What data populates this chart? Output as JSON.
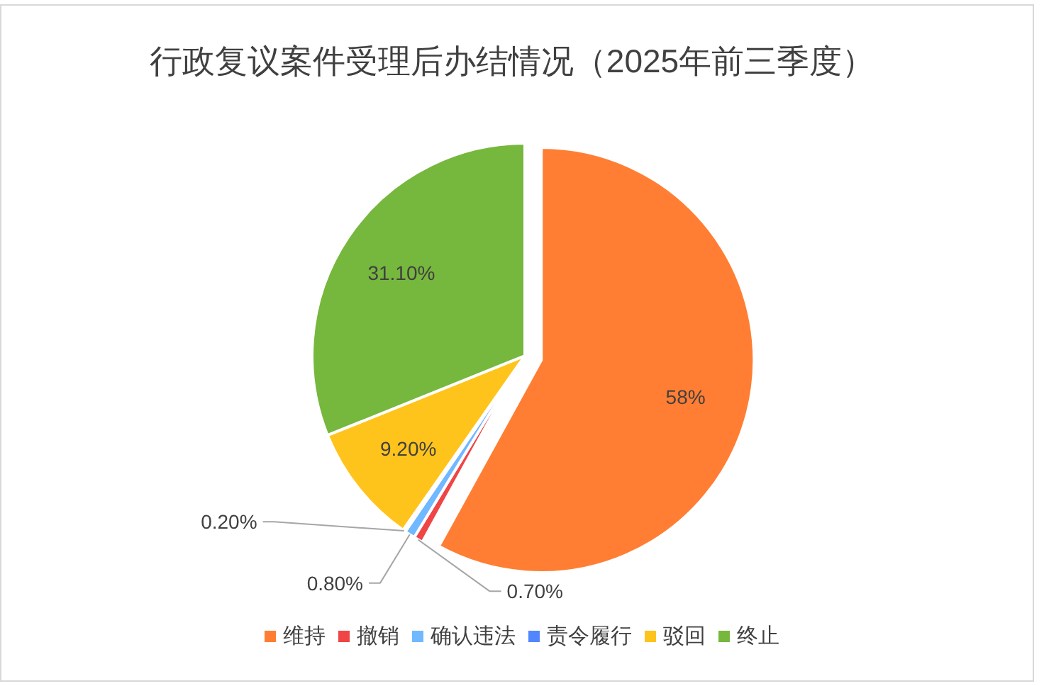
{
  "chart_data": {
    "type": "pie",
    "title": "行政复议案件受理后办结情况（2025年前三季度）",
    "categories": [
      "维持",
      "撤销",
      "确认违法",
      "责令履行",
      "驳回",
      "终止"
    ],
    "values": [
      58,
      0.7,
      0.8,
      0.2,
      9.2,
      31.1
    ],
    "colors": [
      "#FF7E33",
      "#F04545",
      "#70B8FF",
      "#5286FF",
      "#FFC41C",
      "#76B73E"
    ],
    "value_labels": [
      "58%",
      "0.70%",
      "0.80%",
      "0.20%",
      "9.20%",
      "31.10%"
    ],
    "legend": "bottom"
  }
}
